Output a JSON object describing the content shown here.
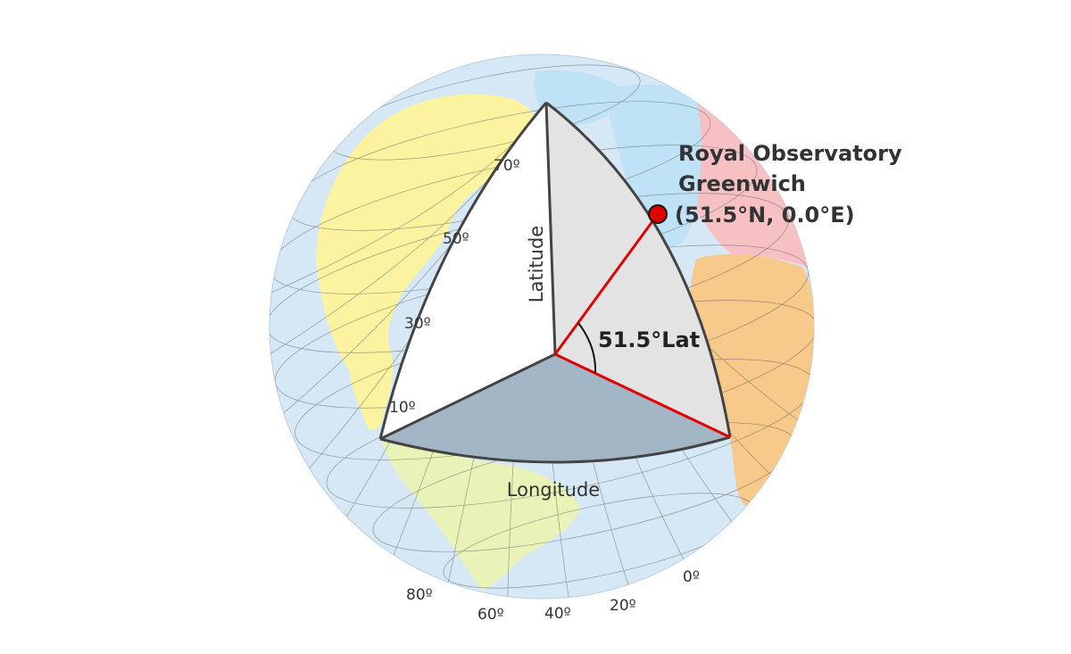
{
  "diagram": {
    "labels": {
      "latitude_axis": "Latitude",
      "longitude_axis": "Longitude",
      "latitude_angle": "51.5°Lat"
    },
    "observatory": {
      "name_line1": "Royal Observatory",
      "name_line2": "Greenwich",
      "coordinates": "(51.5°N, 0.0°E)",
      "lat_deg": 51.5,
      "lon_deg": 0.0
    },
    "latitude_ticks": [
      "10º",
      "30º",
      "50º",
      "70º"
    ],
    "longitude_ticks": [
      "80º",
      "60º",
      "40º",
      "20º",
      "0º"
    ],
    "colors": {
      "ocean": "#d6e8f5",
      "north_america": "#fbf3a0",
      "south_america": "#e9f3b8",
      "africa": "#f7c98a",
      "asia": "#f7c1c4",
      "europe_water": "#bfe2f6",
      "latitude_wedge": "#ffffff",
      "meridian_wedge": "#e3e3e3",
      "equator_wedge": "#a2b6c6",
      "edge": "#444444",
      "radius_line": "#e00000",
      "marker": "#e00000"
    }
  }
}
